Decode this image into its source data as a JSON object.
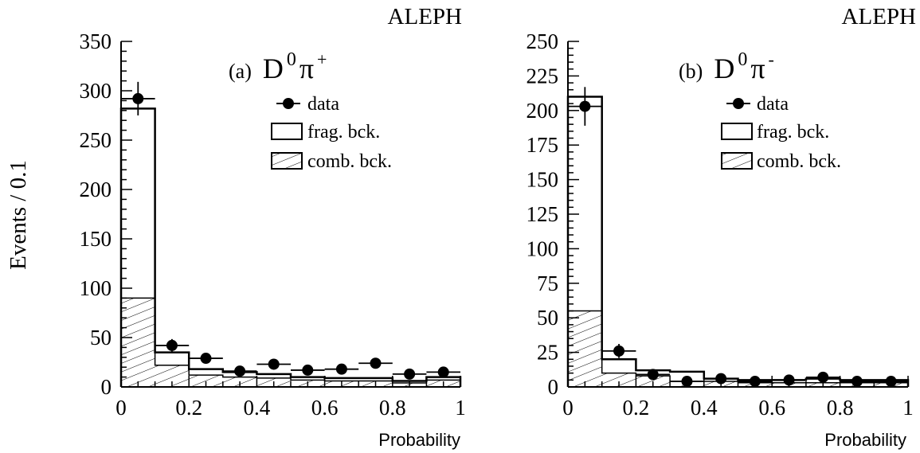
{
  "figure": {
    "ylabel": "Events / 0.1",
    "experiment_label": "ALEPH"
  },
  "legend": {
    "data_label": "data",
    "frag_label": "frag. bck.",
    "comb_label": "comb. bck."
  },
  "chart_data": [
    {
      "type": "bar",
      "panel": "(a)",
      "title": "D",
      "title_sup": "0",
      "title_pi": "π",
      "title_charge": "+",
      "experiment": "ALEPH",
      "xlabel": "Probability",
      "ylabel": "Events / 0.1",
      "xlim": [
        0,
        1
      ],
      "ylim": [
        0,
        350
      ],
      "xticks": [
        "0",
        "0.2",
        "0.4",
        "0.6",
        "0.8",
        "1"
      ],
      "xtick_values": [
        0,
        0.2,
        0.4,
        0.6,
        0.8,
        1
      ],
      "yticks": [
        "0",
        "50",
        "100",
        "150",
        "200",
        "250",
        "300",
        "350"
      ],
      "ytick_values": [
        0,
        50,
        100,
        150,
        200,
        250,
        300,
        350
      ],
      "bin_edges": [
        0,
        0.1,
        0.2,
        0.3,
        0.4,
        0.5,
        0.6,
        0.7,
        0.8,
        0.9,
        1.0
      ],
      "series": [
        {
          "name": "frag. bck.",
          "kind": "histogram-open",
          "values": [
            282,
            35,
            18,
            15,
            13,
            10,
            9,
            9,
            6,
            10
          ]
        },
        {
          "name": "comb. bck.",
          "kind": "histogram-hatched",
          "values": [
            90,
            22,
            12,
            10,
            9,
            7,
            6,
            6,
            4,
            7
          ]
        },
        {
          "name": "data",
          "kind": "points",
          "x": [
            0.05,
            0.15,
            0.25,
            0.35,
            0.45,
            0.55,
            0.65,
            0.75,
            0.85,
            0.95
          ],
          "values": [
            292,
            42,
            29,
            16,
            23,
            17,
            18,
            24,
            13,
            15
          ],
          "errors": [
            17,
            6.5,
            5.4,
            4,
            4.8,
            4.1,
            4.2,
            4.9,
            3.6,
            3.9
          ]
        }
      ],
      "legend_position": "top-right"
    },
    {
      "type": "bar",
      "panel": "(b)",
      "title": "D",
      "title_sup": "0",
      "title_pi": "π",
      "title_charge": "-",
      "experiment": "ALEPH",
      "xlabel": "Probability",
      "ylabel": "",
      "xlim": [
        0,
        1
      ],
      "ylim": [
        0,
        250
      ],
      "xticks": [
        "0",
        "0.2",
        "0.4",
        "0.6",
        "0.8",
        "1"
      ],
      "xtick_values": [
        0,
        0.2,
        0.4,
        0.6,
        0.8,
        1
      ],
      "yticks": [
        "0",
        "25",
        "50",
        "75",
        "100",
        "125",
        "150",
        "175",
        "200",
        "225",
        "250"
      ],
      "ytick_values": [
        0,
        25,
        50,
        75,
        100,
        125,
        150,
        175,
        200,
        225,
        250
      ],
      "bin_edges": [
        0,
        0.1,
        0.2,
        0.3,
        0.4,
        0.5,
        0.6,
        0.7,
        0.8,
        0.9,
        1.0
      ],
      "series": [
        {
          "name": "frag. bck.",
          "kind": "histogram-open",
          "values": [
            210,
            20,
            12,
            11,
            6,
            5,
            5,
            6,
            5,
            5
          ]
        },
        {
          "name": "comb. bck.",
          "kind": "histogram-hatched",
          "values": [
            55,
            10,
            8,
            4,
            4,
            3,
            3,
            3,
            3,
            3
          ]
        },
        {
          "name": "data",
          "kind": "points",
          "x": [
            0.05,
            0.15,
            0.25,
            0.35,
            0.45,
            0.55,
            0.65,
            0.75,
            0.85,
            0.95
          ],
          "values": [
            203,
            26,
            9,
            4,
            6,
            4,
            5,
            7,
            4,
            4
          ],
          "errors": [
            14,
            5.1,
            3,
            2,
            2.4,
            2,
            2.2,
            2.6,
            2,
            2
          ]
        }
      ],
      "legend_position": "top-right"
    }
  ]
}
